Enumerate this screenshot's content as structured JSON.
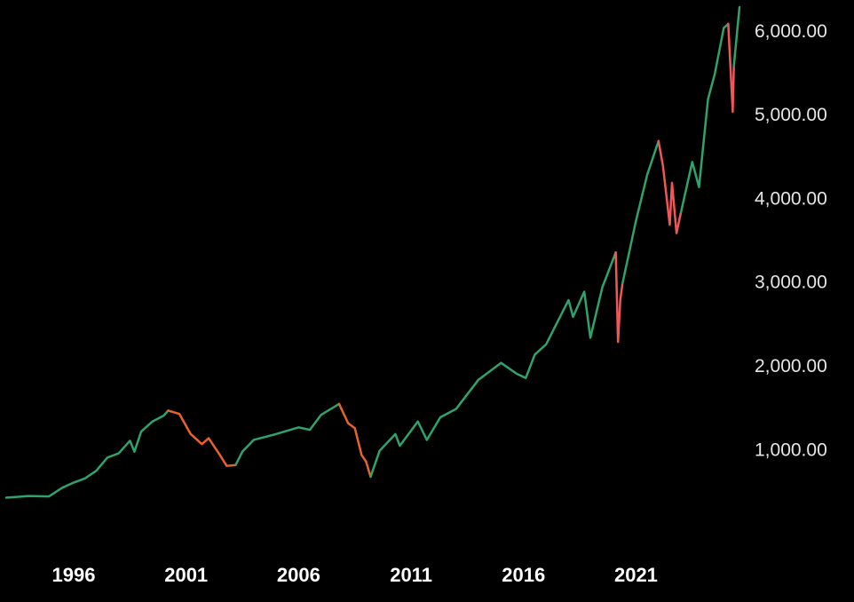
{
  "chart_data": {
    "type": "line",
    "xlim": [
      1993,
      2025.6
    ],
    "xticks": [
      1996,
      2001,
      2006,
      2011,
      2016,
      2021
    ],
    "ylim": [
      0,
      6300
    ],
    "yticks": [
      {
        "value": 1000,
        "label": "1,000.00"
      },
      {
        "value": 2000,
        "label": "2,000.00"
      },
      {
        "value": 3000,
        "label": "3,000.00"
      },
      {
        "value": 4000,
        "label": "4,000.00"
      },
      {
        "value": 5000,
        "label": "5,000.00"
      },
      {
        "value": 6000,
        "label": "6,000.00"
      }
    ],
    "grid": false,
    "series": [
      {
        "color": "#2fa36b",
        "x": [
          1993,
          1994,
          1994.9,
          1995.5,
          1996,
          1996.5,
          1997,
          1997.5,
          1998,
          1998.5,
          1998.7,
          1999,
          1999.5,
          2000,
          2000.2
        ],
        "values": [
          440,
          460,
          455,
          560,
          620,
          670,
          760,
          920,
          970,
          1120,
          990,
          1230,
          1350,
          1420,
          1480
        ]
      },
      {
        "color": "#e8622c",
        "x": [
          2000.2,
          2000.7,
          2001.2,
          2001.7,
          2002,
          2002.5,
          2002.8,
          2003.2
        ],
        "values": [
          1480,
          1440,
          1200,
          1080,
          1150,
          950,
          820,
          830
        ]
      },
      {
        "color": "#2fa36b",
        "x": [
          2003.2,
          2003.5,
          2004,
          2005,
          2006,
          2006.5,
          2007,
          2007.8
        ],
        "values": [
          830,
          990,
          1130,
          1200,
          1280,
          1250,
          1430,
          1560
        ]
      },
      {
        "color": "#e8622c",
        "x": [
          2007.8,
          2008.2,
          2008.5,
          2008.8,
          2009,
          2009.2
        ],
        "values": [
          1560,
          1330,
          1270,
          950,
          870,
          690
        ]
      },
      {
        "color": "#2fa36b",
        "x": [
          2009.2,
          2009.6,
          2010.3,
          2010.5,
          2011.3,
          2011.7,
          2012.3,
          2013,
          2014,
          2015,
          2015.7,
          2016.1,
          2016.5,
          2017,
          2018,
          2018.2,
          2018.7,
          2018.97,
          2019.5,
          2020.1
        ],
        "values": [
          690,
          1000,
          1200,
          1060,
          1350,
          1130,
          1400,
          1500,
          1850,
          2050,
          1920,
          1870,
          2150,
          2270,
          2800,
          2600,
          2900,
          2350,
          2950,
          3370
        ]
      },
      {
        "color": "#f0565a",
        "x": [
          2020.1,
          2020.2,
          2020.3,
          2020.4
        ],
        "values": [
          3370,
          2300,
          2800,
          3000
        ]
      },
      {
        "color": "#2fa36b",
        "x": [
          2020.4,
          2021,
          2021.5,
          2022
        ],
        "values": [
          3000,
          3750,
          4300,
          4700
        ]
      },
      {
        "color": "#f0565a",
        "x": [
          2022,
          2022.2,
          2022.5,
          2022.6,
          2022.8,
          2023
        ],
        "values": [
          4700,
          4400,
          3700,
          4200,
          3600,
          3850
        ]
      },
      {
        "color": "#2fa36b",
        "x": [
          2023,
          2023.5,
          2023.8,
          2024.2,
          2024.5,
          2024.9,
          2025.1
        ],
        "values": [
          3850,
          4450,
          4150,
          5200,
          5500,
          6050,
          6100
        ]
      },
      {
        "color": "#f0565a",
        "x": [
          2025.1,
          2025.3,
          2025.35
        ],
        "values": [
          6100,
          5050,
          5600
        ]
      },
      {
        "color": "#2fa36b",
        "x": [
          2025.35,
          2025.6
        ],
        "values": [
          5600,
          6300
        ]
      }
    ]
  }
}
